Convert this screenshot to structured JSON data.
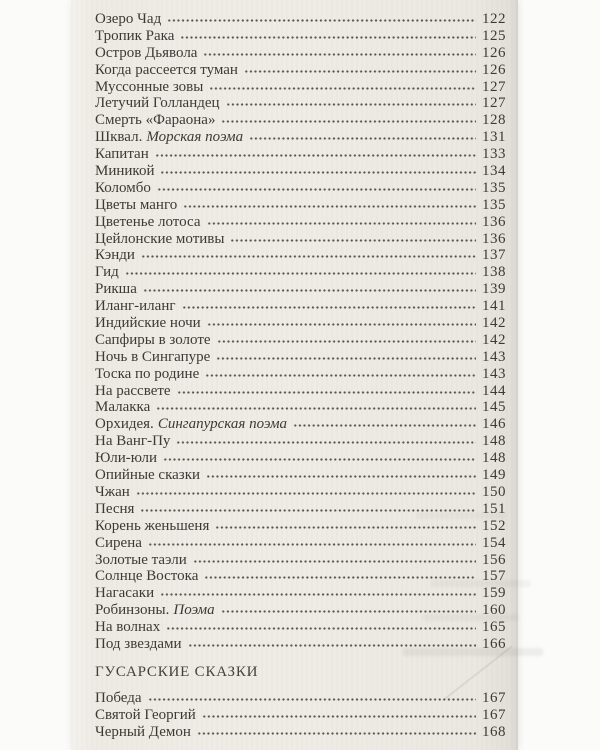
{
  "colors": {
    "background": "#fbfbf9",
    "paper": "#eeebe5",
    "text": "#3d3a35",
    "heading": "#45413b",
    "dot_leader": "#4e4940"
  },
  "toc": {
    "sections": [
      {
        "heading": "",
        "entries": [
          {
            "title": "Озеро Чад",
            "subtitle": "",
            "page": "122"
          },
          {
            "title": "Тропик Рака",
            "subtitle": "",
            "page": "125"
          },
          {
            "title": "Остров Дьявола",
            "subtitle": "",
            "page": "126"
          },
          {
            "title": "Когда рассеется туман",
            "subtitle": "",
            "page": "126"
          },
          {
            "title": "Муссонные зовы",
            "subtitle": "",
            "page": "127"
          },
          {
            "title": "Летучий Голландец",
            "subtitle": "",
            "page": "127"
          },
          {
            "title": "Смерть «Фараона»",
            "subtitle": "",
            "page": "128"
          },
          {
            "title": "Шквал.",
            "subtitle": "Морская поэма",
            "page": "131"
          },
          {
            "title": "Капитан",
            "subtitle": "",
            "page": "133"
          },
          {
            "title": "Миникой",
            "subtitle": "",
            "page": "134"
          },
          {
            "title": "Коломбо",
            "subtitle": "",
            "page": "135"
          },
          {
            "title": "Цветы манго",
            "subtitle": "",
            "page": "135"
          },
          {
            "title": "Цветенье лотоса",
            "subtitle": "",
            "page": "136"
          },
          {
            "title": "Цейлонские мотивы",
            "subtitle": "",
            "page": "136"
          },
          {
            "title": "Кэнди",
            "subtitle": "",
            "page": "137"
          },
          {
            "title": "Гид",
            "subtitle": "",
            "page": "138"
          },
          {
            "title": "Рикша",
            "subtitle": "",
            "page": "139"
          },
          {
            "title": "Иланг-иланг",
            "subtitle": "",
            "page": "141"
          },
          {
            "title": "Индийские ночи",
            "subtitle": "",
            "page": "142"
          },
          {
            "title": "Сапфиры в золоте",
            "subtitle": "",
            "page": "142"
          },
          {
            "title": "Ночь в Сингапуре",
            "subtitle": "",
            "page": "143"
          },
          {
            "title": "Тоска по родине",
            "subtitle": "",
            "page": "143"
          },
          {
            "title": "На рассвете",
            "subtitle": "",
            "page": "144"
          },
          {
            "title": "Малакка",
            "subtitle": "",
            "page": "145"
          },
          {
            "title": "Орхидея.",
            "subtitle": "Сингапурская поэма",
            "page": "146"
          },
          {
            "title": "На Ванг-Пу",
            "subtitle": "",
            "page": "148"
          },
          {
            "title": "Юли-юли",
            "subtitle": "",
            "page": "148"
          },
          {
            "title": "Опийные сказки",
            "subtitle": "",
            "page": "149"
          },
          {
            "title": "Чжан",
            "subtitle": "",
            "page": "150"
          },
          {
            "title": "Песня",
            "subtitle": "",
            "page": "151"
          },
          {
            "title": "Корень женьшеня",
            "subtitle": "",
            "page": "152"
          },
          {
            "title": "Сирена",
            "subtitle": "",
            "page": "154"
          },
          {
            "title": "Золотые таэли",
            "subtitle": "",
            "page": "156"
          },
          {
            "title": "Солнце Востока",
            "subtitle": "",
            "page": "157"
          },
          {
            "title": "Нагасаки",
            "subtitle": "",
            "page": "159"
          },
          {
            "title": "Робинзоны.",
            "subtitle": "Поэма",
            "page": "160"
          },
          {
            "title": "На волнах",
            "subtitle": "",
            "page": "165"
          },
          {
            "title": "Под звездами",
            "subtitle": "",
            "page": "166"
          }
        ]
      },
      {
        "heading": "ГУСАРСКИЕ СКАЗКИ",
        "entries": [
          {
            "title": "Победа",
            "subtitle": "",
            "page": "167"
          },
          {
            "title": "Святой Георгий",
            "subtitle": "",
            "page": "167"
          },
          {
            "title": "Черный Демон",
            "subtitle": "",
            "page": "168"
          }
        ]
      }
    ]
  }
}
